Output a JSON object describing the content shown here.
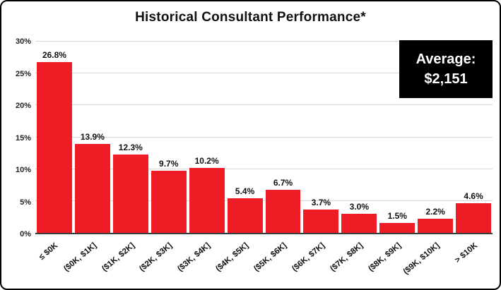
{
  "chart_data": {
    "type": "bar",
    "title": "Historical Consultant Performance*",
    "categories": [
      "≤ $0K",
      "($0K, $1K]",
      "($1K, $2K]",
      "($2K, $3K]",
      "($3K, $4K]",
      "($4K, $5K]",
      "($5K, $6K]",
      "($6K, $7K]",
      "($7K, $8K]",
      "($8K, $9K]",
      "($9K, $10K]",
      "> $10K"
    ],
    "values": [
      26.8,
      13.9,
      12.3,
      9.7,
      10.2,
      5.4,
      6.7,
      3.7,
      3.0,
      1.5,
      2.2,
      4.6
    ],
    "value_labels": [
      "26.8%",
      "13.9%",
      "12.3%",
      "9.7%",
      "10.2%",
      "5.4%",
      "6.7%",
      "3.7%",
      "3.0%",
      "1.5%",
      "2.2%",
      "4.6%"
    ],
    "xlabel": "",
    "ylabel": "",
    "ylim": [
      0,
      30
    ],
    "yticks": [
      0,
      5,
      10,
      15,
      20,
      25,
      30
    ],
    "ytick_labels": [
      "0%",
      "5%",
      "10%",
      "15%",
      "20%",
      "25%",
      "30%"
    ],
    "grid": true,
    "legend": "none",
    "bar_color": "#ee1c25",
    "annotation": {
      "line1": "Average:",
      "line2": "$2,151",
      "background": "#000000",
      "text_color": "#ffffff"
    }
  }
}
